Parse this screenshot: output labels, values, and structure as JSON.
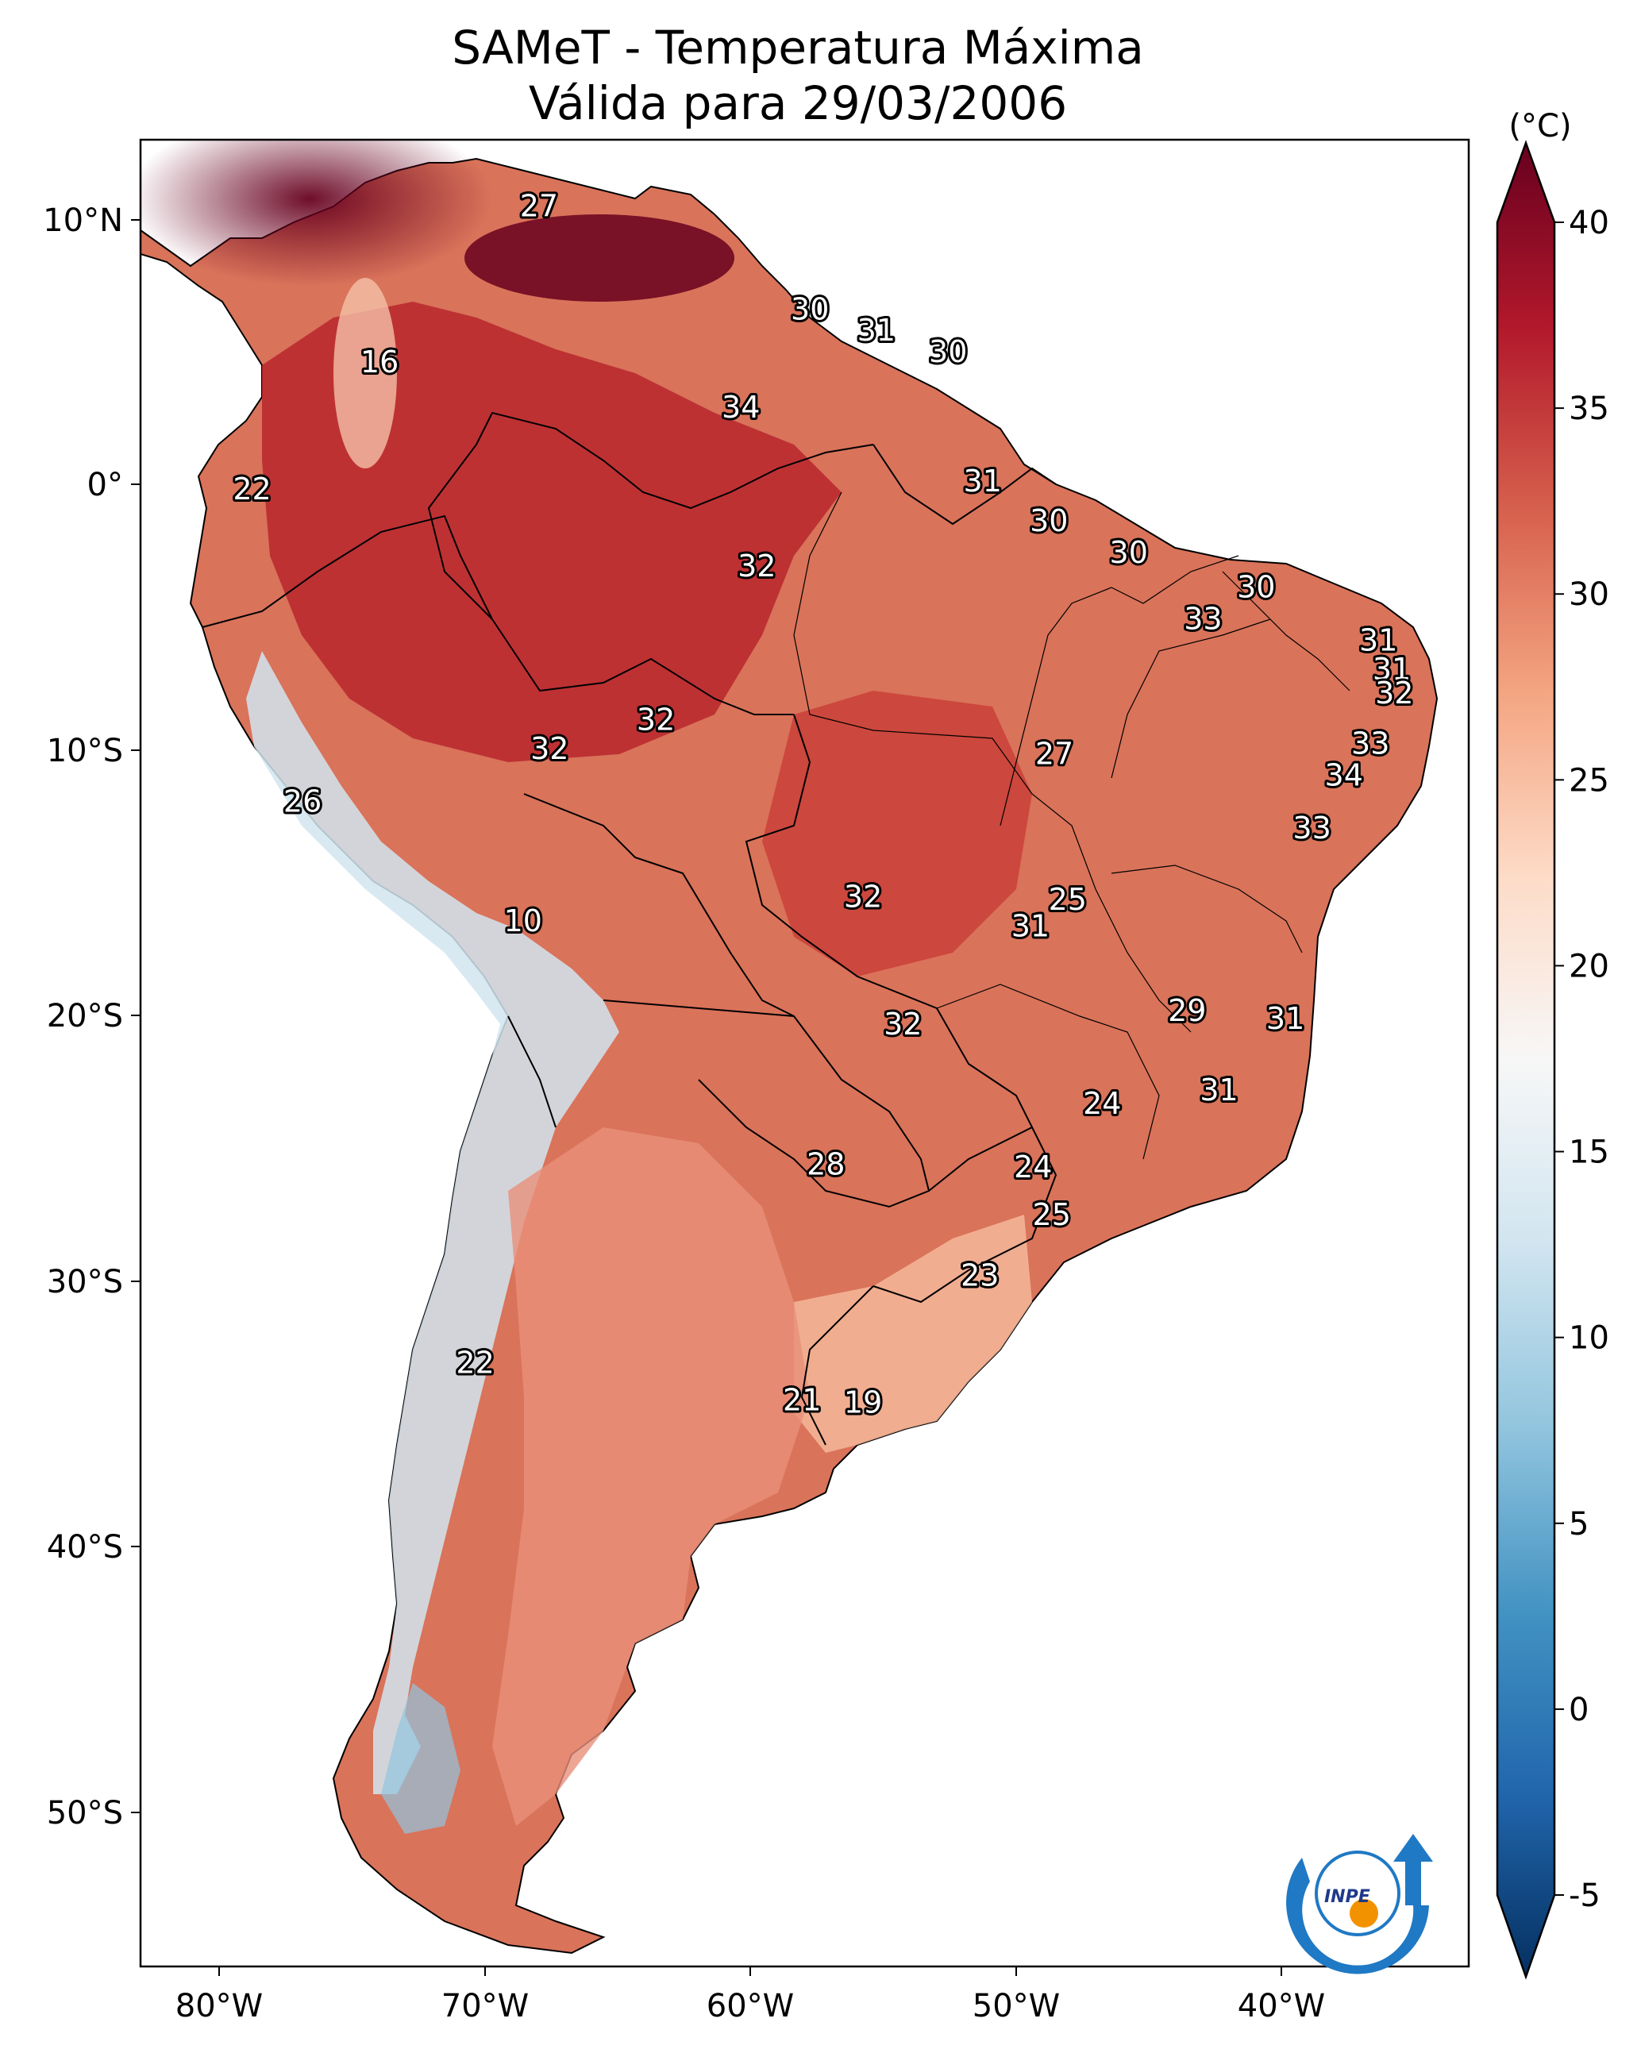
{
  "title_line1": "SAMeT - Temperatura Máxima",
  "title_line2": "Válida para 29/03/2006",
  "unit": "(°C)",
  "logo_text": "INPE",
  "map": {
    "lon_range": [
      -83,
      -33
    ],
    "lat_range": [
      -56,
      13
    ],
    "lon_ticks": [
      "80°W",
      "70°W",
      "60°W",
      "50°W",
      "40°W"
    ],
    "lat_ticks": [
      "10°N",
      "0°",
      "10°S",
      "20°S",
      "30°S",
      "40°S",
      "50°S"
    ],
    "colorbar": {
      "range": [
        -5,
        40
      ],
      "ticks": [
        "40",
        "35",
        "30",
        "25",
        "20",
        "15",
        "10",
        "5",
        "0",
        "-5"
      ],
      "colors": [
        "#053061",
        "#2166ac",
        "#4393c3",
        "#92c5de",
        "#d1e5f0",
        "#f7f7f7",
        "#fddbc7",
        "#f4a582",
        "#d6604d",
        "#b2182b",
        "#67001f"
      ]
    },
    "station_labels": [
      {
        "text": "27",
        "lon": -68.0,
        "lat": 10.5
      },
      {
        "text": "30",
        "lon": -57.8,
        "lat": 6.6
      },
      {
        "text": "31",
        "lon": -55.3,
        "lat": 5.8
      },
      {
        "text": "30",
        "lon": -52.6,
        "lat": 5.0
      },
      {
        "text": "16",
        "lon": -74.0,
        "lat": 4.6
      },
      {
        "text": "34",
        "lon": -60.4,
        "lat": 2.9
      },
      {
        "text": "22",
        "lon": -78.8,
        "lat": -0.2
      },
      {
        "text": "31",
        "lon": -51.3,
        "lat": 0.1
      },
      {
        "text": "30",
        "lon": -48.8,
        "lat": -1.4
      },
      {
        "text": "30",
        "lon": -45.8,
        "lat": -2.6
      },
      {
        "text": "32",
        "lon": -59.8,
        "lat": -3.1
      },
      {
        "text": "30",
        "lon": -41.0,
        "lat": -3.9
      },
      {
        "text": "33",
        "lon": -43.0,
        "lat": -5.1
      },
      {
        "text": "31",
        "lon": -36.4,
        "lat": -5.9
      },
      {
        "text": "31",
        "lon": -35.9,
        "lat": -7.0
      },
      {
        "text": "32",
        "lon": -35.8,
        "lat": -7.9
      },
      {
        "text": "32",
        "lon": -63.6,
        "lat": -8.9
      },
      {
        "text": "32",
        "lon": -67.6,
        "lat": -10.0
      },
      {
        "text": "27",
        "lon": -48.6,
        "lat": -10.2
      },
      {
        "text": "33",
        "lon": -36.7,
        "lat": -9.8
      },
      {
        "text": "34",
        "lon": -37.7,
        "lat": -11.0
      },
      {
        "text": "26",
        "lon": -76.9,
        "lat": -12.0
      },
      {
        "text": "33",
        "lon": -38.9,
        "lat": -13.0
      },
      {
        "text": "25",
        "lon": -48.1,
        "lat": -15.7
      },
      {
        "text": "32",
        "lon": -55.8,
        "lat": -15.6
      },
      {
        "text": "31",
        "lon": -49.5,
        "lat": -16.7
      },
      {
        "text": "10",
        "lon": -68.6,
        "lat": -16.5
      },
      {
        "text": "29",
        "lon": -43.6,
        "lat": -19.9
      },
      {
        "text": "31",
        "lon": -39.9,
        "lat": -20.2
      },
      {
        "text": "32",
        "lon": -54.3,
        "lat": -20.4
      },
      {
        "text": "31",
        "lon": -42.4,
        "lat": -22.9
      },
      {
        "text": "24",
        "lon": -46.8,
        "lat": -23.4
      },
      {
        "text": "28",
        "lon": -57.2,
        "lat": -25.7
      },
      {
        "text": "24",
        "lon": -49.4,
        "lat": -25.8
      },
      {
        "text": "25",
        "lon": -48.7,
        "lat": -27.6
      },
      {
        "text": "23",
        "lon": -51.4,
        "lat": -29.9
      },
      {
        "text": "22",
        "lon": -70.4,
        "lat": -33.2
      },
      {
        "text": "21",
        "lon": -58.1,
        "lat": -34.6
      },
      {
        "text": "19",
        "lon": -55.8,
        "lat": -34.7
      }
    ]
  }
}
